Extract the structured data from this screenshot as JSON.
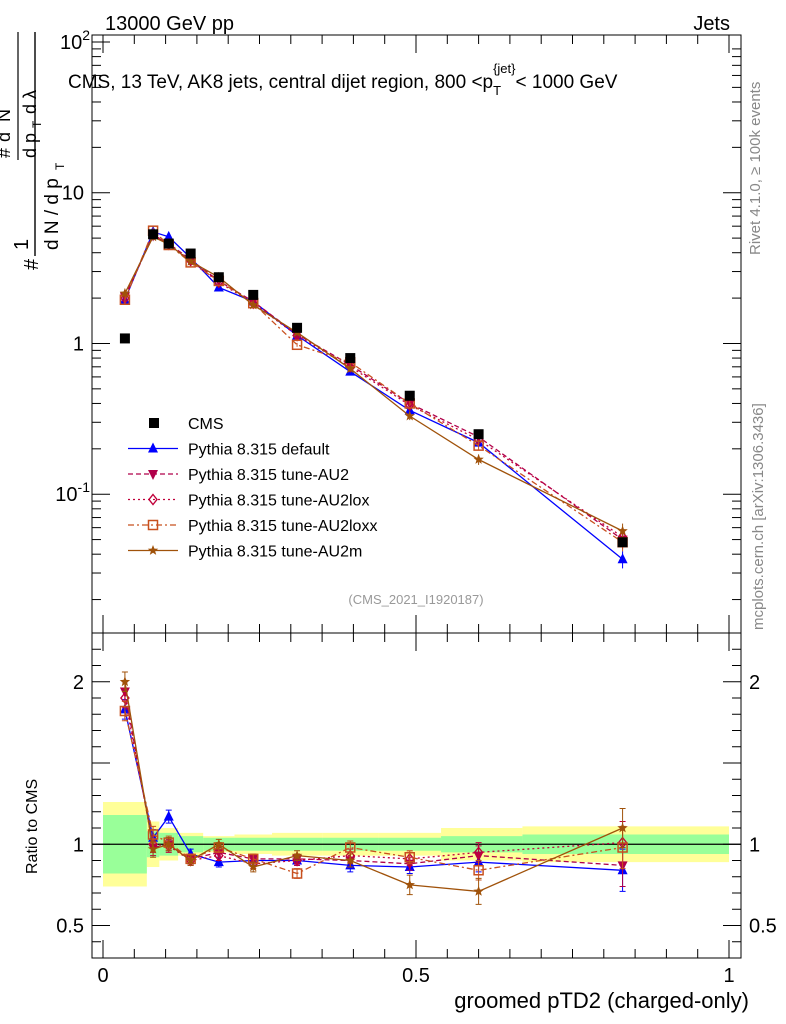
{
  "header": {
    "energy_label": "13000 GeV pp",
    "jets_label": "Jets",
    "rivet_label": "Rivet 4.1.0, ≥ 100k events",
    "mcplots_label": "mcplots.cern.ch [arXiv:1306.3436]",
    "analysis_tag": "(CMS_2021_I1920187)",
    "subtitle": "CMS, 13 TeV, AK8 jets, central dijet region, 800 <p_T^{jet}< 1000 GeV"
  },
  "colors": {
    "cms": "#000000",
    "default": "#0000ff",
    "au2": "#b0004a",
    "au2lox": "#c0003a",
    "au2loxx": "#c8501e",
    "au2m": "#a0520a",
    "band_inner": "#99ff99",
    "band_outer": "#ffff99"
  },
  "chart_data": {
    "type": "line",
    "xlabel": "groomed pTD2 (charged-only)",
    "ylabel": "1/N dN/dλ",
    "ratio_ylabel": "Ratio to CMS",
    "xlim": [
      0,
      1
    ],
    "ylim": [
      0.012,
      100
    ],
    "ratio_ylim": [
      0.3,
      2.3
    ],
    "main_y_ticks": [
      {
        "value": 100,
        "label": "10^2"
      },
      {
        "value": 10,
        "label": "10"
      },
      {
        "value": 1,
        "label": "1"
      },
      {
        "value": 0.1,
        "label": "10^-1"
      }
    ],
    "x_ticks": [
      {
        "value": 0,
        "label": "0"
      },
      {
        "value": 0.5,
        "label": "0.5"
      },
      {
        "value": 1,
        "label": "1"
      }
    ],
    "ratio_y_ticks": [
      {
        "value": 2,
        "label": "2"
      },
      {
        "value": 1,
        "label": "1"
      },
      {
        "value": 0.5,
        "label": "0.5"
      }
    ],
    "x": [
      0.035,
      0.08,
      0.105,
      0.14,
      0.185,
      0.24,
      0.31,
      0.395,
      0.49,
      0.6,
      0.83
    ],
    "bin_edges": [
      0.0,
      0.07,
      0.09,
      0.12,
      0.16,
      0.21,
      0.27,
      0.35,
      0.44,
      0.54,
      0.67,
      1.0
    ],
    "cms": {
      "name": "CMS",
      "values": [
        1.08,
        5.3,
        4.6,
        3.95,
        2.75,
        2.1,
        1.27,
        0.8,
        0.45,
        0.25,
        0.048
      ],
      "stat_band": [
        0.18,
        0.08,
        0.07,
        0.05,
        0.04,
        0.04,
        0.04,
        0.04,
        0.04,
        0.05,
        0.06
      ],
      "total_band": [
        0.26,
        0.14,
        0.1,
        0.07,
        0.05,
        0.06,
        0.07,
        0.07,
        0.07,
        0.1,
        0.11
      ]
    },
    "series": [
      {
        "name": "Pythia 8.315 default",
        "color_key": "default",
        "marker": "triangle-up",
        "dash": "",
        "values": [
          1.95,
          5.5,
          5.1,
          3.7,
          2.35,
          1.9,
          1.13,
          0.65,
          0.36,
          0.22,
          0.037
        ],
        "ratio": [
          1.83,
          1.04,
          1.17,
          0.94,
          0.89,
          0.9,
          0.9,
          0.87,
          0.86,
          0.89,
          0.84
        ],
        "ratio_err": [
          0.06,
          0.05,
          0.04,
          0.03,
          0.03,
          0.03,
          0.03,
          0.04,
          0.04,
          0.06,
          0.13
        ]
      },
      {
        "name": "Pythia 8.315 tune-AU2",
        "color_key": "au2",
        "marker": "triangle-down",
        "dash": "5,3",
        "values": [
          2.05,
          5.2,
          4.6,
          3.6,
          2.6,
          1.9,
          1.15,
          0.72,
          0.4,
          0.24,
          0.05
        ],
        "ratio": [
          1.94,
          0.98,
          1.0,
          0.91,
          0.95,
          0.91,
          0.91,
          0.9,
          0.88,
          0.93,
          0.87
        ],
        "ratio_err": [
          0.06,
          0.05,
          0.04,
          0.03,
          0.03,
          0.03,
          0.03,
          0.04,
          0.04,
          0.06,
          0.13
        ]
      },
      {
        "name": "Pythia 8.315 tune-AU2lox",
        "color_key": "au2lox",
        "marker": "diamond-open",
        "dash": "2,3",
        "values": [
          2.0,
          5.3,
          4.55,
          3.55,
          2.55,
          1.85,
          1.13,
          0.7,
          0.39,
          0.23,
          0.052
        ],
        "ratio": [
          1.9,
          1.0,
          0.99,
          0.9,
          0.93,
          0.88,
          0.9,
          0.93,
          0.91,
          0.95,
          1.01
        ],
        "ratio_err": [
          0.06,
          0.05,
          0.04,
          0.03,
          0.03,
          0.03,
          0.03,
          0.04,
          0.04,
          0.06,
          0.13
        ]
      },
      {
        "name": "Pythia 8.315 tune-AU2loxx",
        "color_key": "au2loxx",
        "marker": "square-open",
        "dash": "6,3,2,3",
        "values": [
          1.95,
          5.6,
          4.5,
          3.45,
          2.6,
          1.85,
          0.98,
          0.75,
          0.4,
          0.21,
          0.048
        ],
        "ratio": [
          1.82,
          1.06,
          1.01,
          0.91,
          0.98,
          0.91,
          0.82,
          0.98,
          0.92,
          0.84,
          0.98
        ],
        "ratio_err": [
          0.06,
          0.05,
          0.04,
          0.03,
          0.03,
          0.03,
          0.03,
          0.04,
          0.04,
          0.06,
          0.13
        ]
      },
      {
        "name": "Pythia 8.315 tune-AU2m",
        "color_key": "au2m",
        "marker": "star",
        "dash": "",
        "values": [
          2.15,
          5.1,
          4.55,
          3.5,
          2.75,
          1.8,
          1.18,
          0.68,
          0.33,
          0.17,
          0.057
        ],
        "ratio": [
          2.0,
          0.97,
          1.0,
          0.9,
          1.0,
          0.86,
          0.93,
          0.9,
          0.75,
          0.71,
          1.1
        ],
        "ratio_err": [
          0.06,
          0.05,
          0.04,
          0.03,
          0.03,
          0.03,
          0.03,
          0.04,
          0.06,
          0.08,
          0.12
        ]
      }
    ]
  }
}
